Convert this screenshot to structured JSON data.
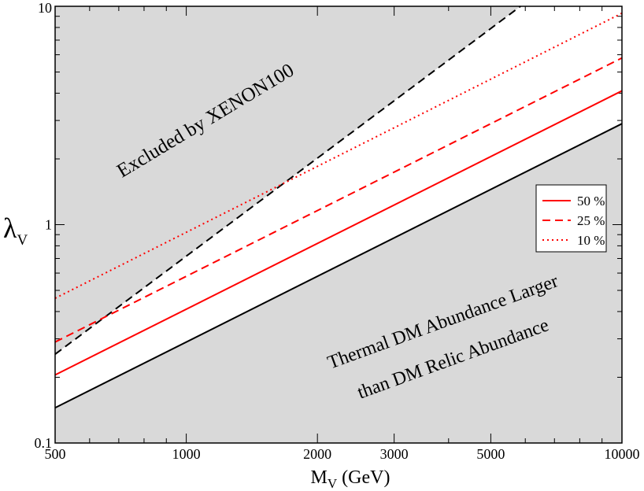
{
  "chart_data": {
    "type": "line",
    "x_scale": "log",
    "y_scale": "log",
    "xlim": [
      500,
      10000
    ],
    "ylim": [
      0.1,
      10
    ],
    "xlabel": {
      "main": "M",
      "sub": "V",
      "rest": " (GeV)"
    },
    "ylabel": {
      "main": "λ",
      "sub": "V"
    },
    "x_ticks": [
      {
        "value": 500,
        "label": "500"
      },
      {
        "value": 1000,
        "label": "1000"
      },
      {
        "value": 2000,
        "label": "2000"
      },
      {
        "value": 3000,
        "label": "3000"
      },
      {
        "value": 5000,
        "label": "5000"
      },
      {
        "value": 10000,
        "label": "10000"
      }
    ],
    "y_ticks": [
      {
        "value": 0.1,
        "label": "0.1"
      },
      {
        "value": 1,
        "label": "1"
      },
      {
        "value": 10,
        "label": "10"
      }
    ],
    "region_color": "#d9d9d9",
    "boundaries": {
      "relic": {
        "x": [
          500,
          10000
        ],
        "y": [
          0.145,
          2.9
        ],
        "color": "#000000",
        "dash": "solid"
      },
      "xenon": {
        "x": [
          500,
          5850
        ],
        "y": [
          0.255,
          10
        ],
        "color": "#000000",
        "dash": "dashed"
      }
    },
    "series": [
      {
        "name": "50 %",
        "x": [
          500,
          10000
        ],
        "y": [
          0.205,
          4.1
        ],
        "color": "#ff0000",
        "dash": "solid"
      },
      {
        "name": "25 %",
        "x": [
          500,
          10000
        ],
        "y": [
          0.29,
          5.8
        ],
        "color": "#ff0000",
        "dash": "dashed"
      },
      {
        "name": "10 %",
        "x": [
          500,
          10000
        ],
        "y": [
          0.46,
          9.3
        ],
        "color": "#ff0000",
        "dash": "dotted"
      }
    ],
    "annotations": {
      "excluded": "Excluded by XENON100",
      "thermal_line1": "Thermal DM Abundance Larger",
      "thermal_line2": "than DM Relic Abundance"
    },
    "legend_position": "right"
  }
}
